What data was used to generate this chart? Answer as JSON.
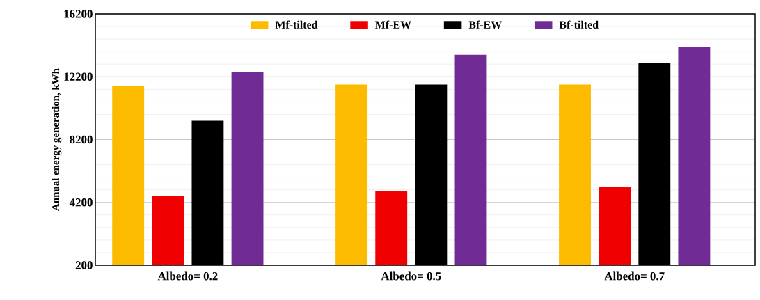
{
  "chart_data": {
    "type": "bar",
    "ylabel": "Annual energy generation, kWh",
    "categories": [
      "Albedo= 0.2",
      "Albedo= 0.5",
      "Albedo= 0.7"
    ],
    "series": [
      {
        "name": "Mf-tilted",
        "color": "#fdbb00",
        "values": [
          11600,
          11700,
          11700
        ]
      },
      {
        "name": "Mf-EW",
        "color": "#f00000",
        "values": [
          4600,
          4900,
          5200
        ]
      },
      {
        "name": "Bf-EW",
        "color": "#000000",
        "values": [
          9400,
          11700,
          13100
        ]
      },
      {
        "name": "Bf-tilted",
        "color": "#702b94",
        "values": [
          12500,
          13600,
          14100
        ]
      }
    ],
    "ylim": [
      200,
      16200
    ],
    "yticks": [
      200,
      4200,
      8200,
      12200,
      16200
    ],
    "grid": "y",
    "legend": "top"
  }
}
